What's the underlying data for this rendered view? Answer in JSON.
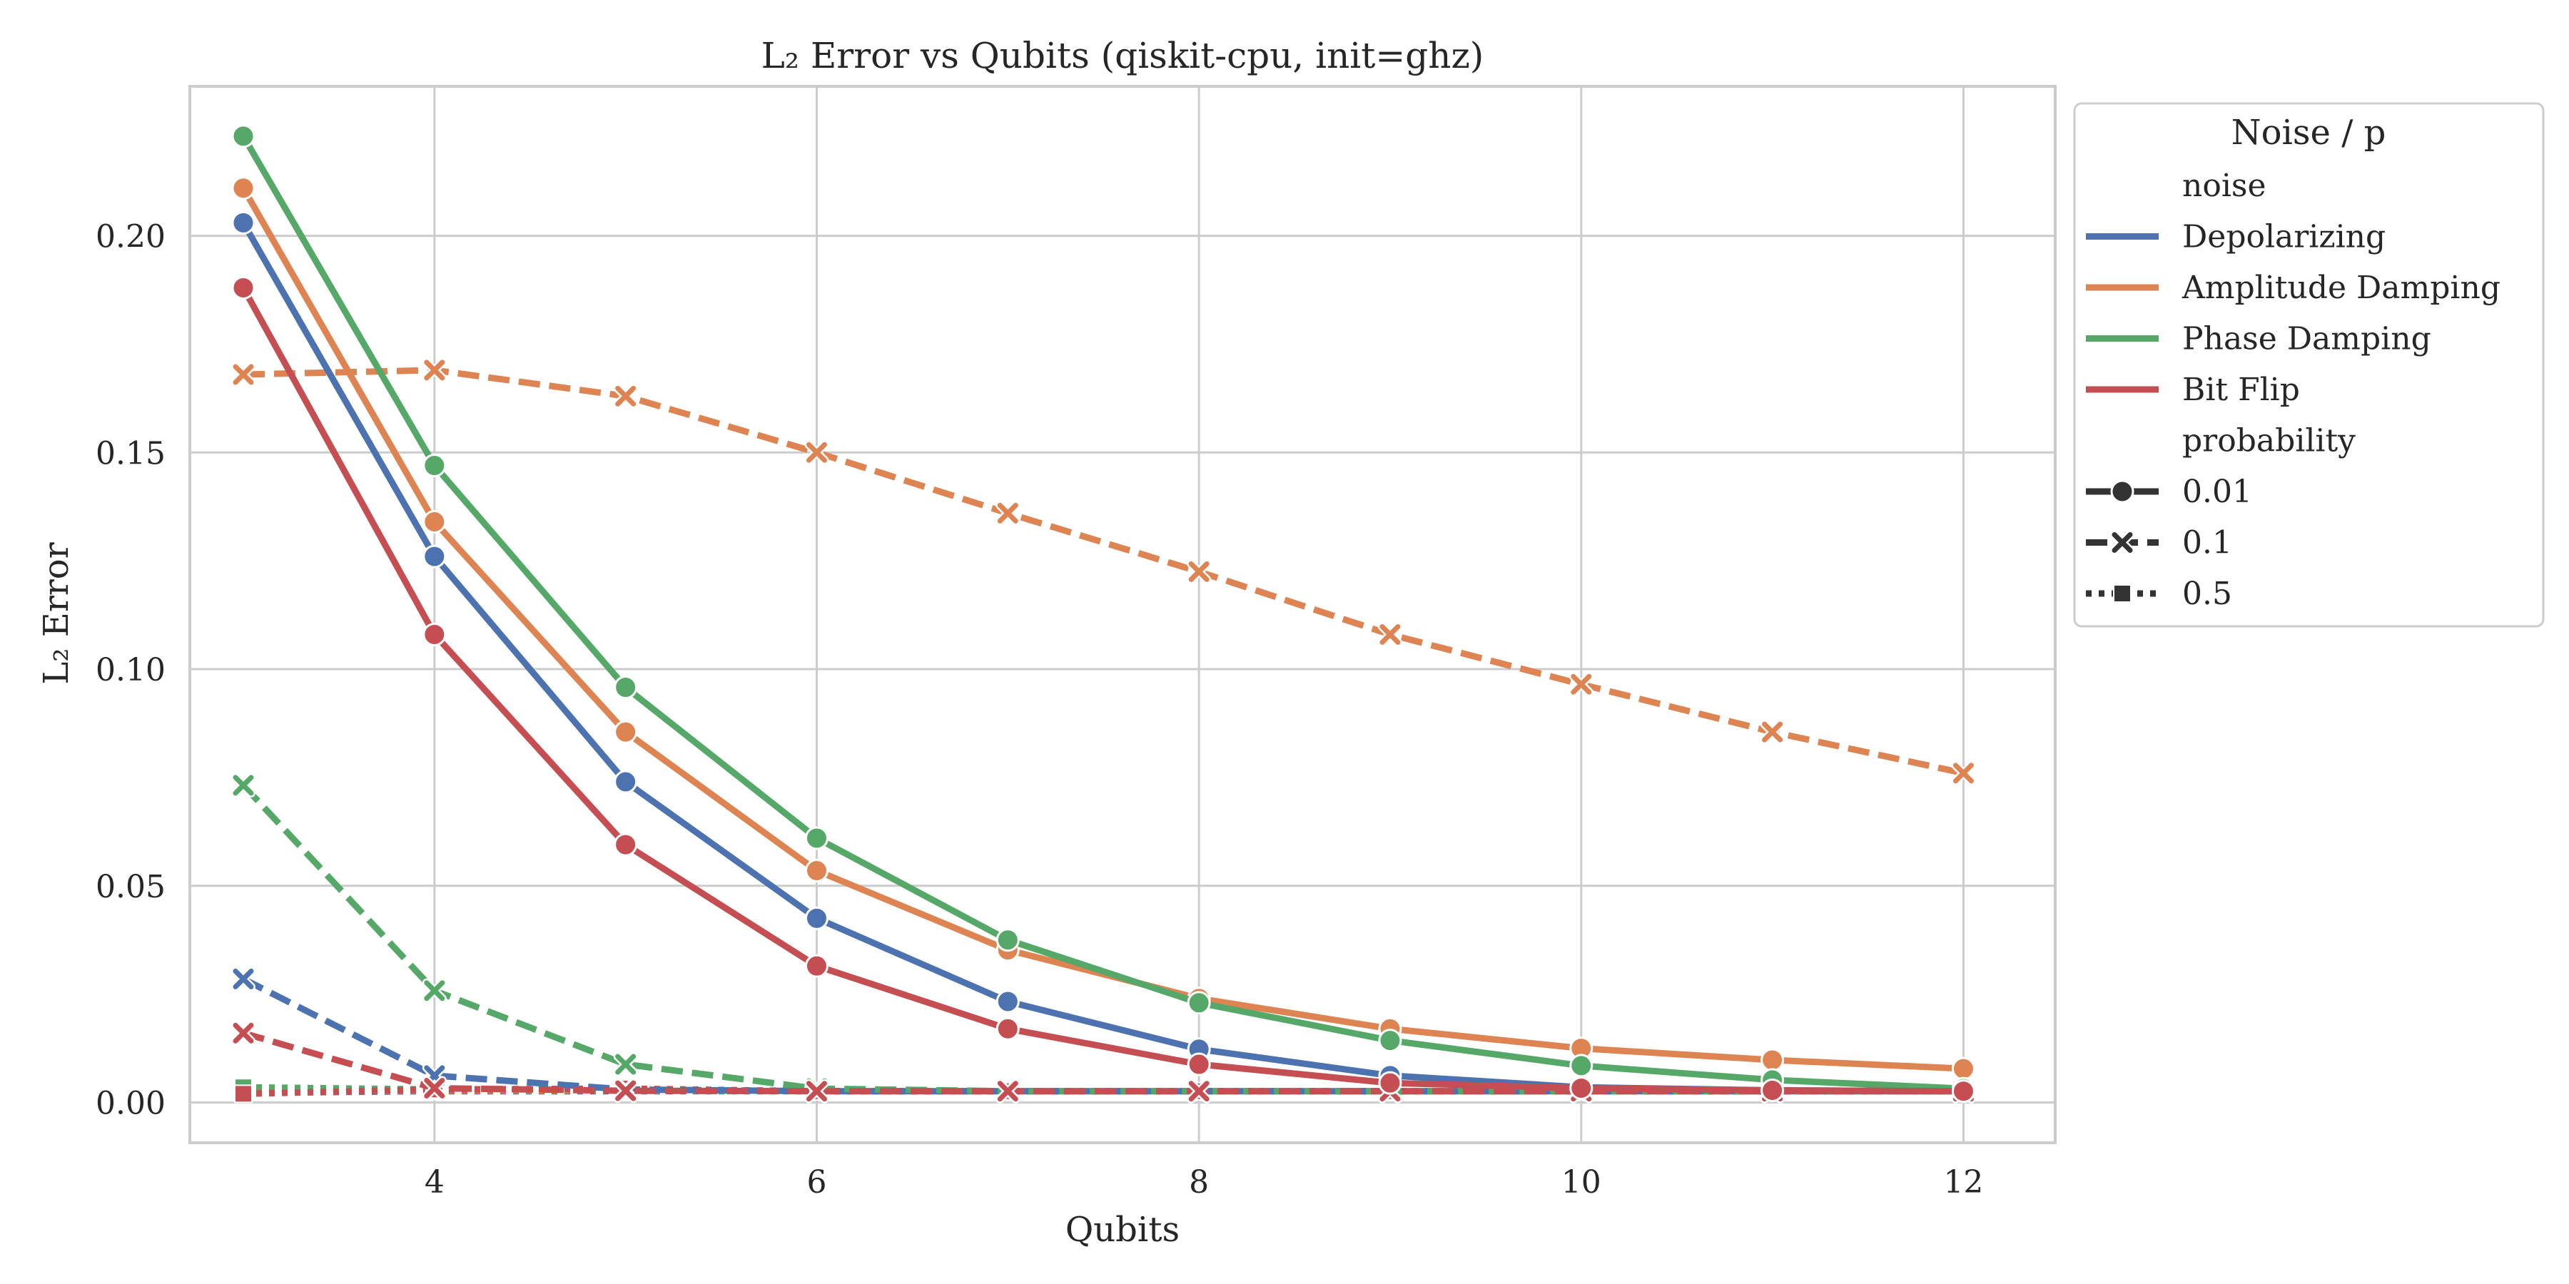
{
  "chart_data": {
    "type": "line",
    "title": "L₂ Error vs Qubits (qiskit-cpu, init=ghz)",
    "xlabel": "Qubits",
    "ylabel": "L₂ Error",
    "xlim": [
      2.72,
      12.48
    ],
    "ylim": [
      -0.0093,
      0.2345
    ],
    "x_ticks": [
      4,
      6,
      8,
      10,
      12
    ],
    "x_tick_labels": [
      "4",
      "6",
      "8",
      "10",
      "12"
    ],
    "y_ticks": [
      0.0,
      0.05,
      0.1,
      0.15,
      0.2
    ],
    "y_tick_labels": [
      "0.00",
      "0.05",
      "0.10",
      "0.15",
      "0.20"
    ],
    "grid": true,
    "legend": {
      "placement": "outside-right",
      "title": "Noise / p",
      "noise_heading": "noise",
      "probability_heading": "probability",
      "noise_entries": [
        {
          "label": "Depolarizing",
          "color": "#4c72b0"
        },
        {
          "label": "Amplitude Damping",
          "color": "#dd8452"
        },
        {
          "label": "Phase Damping",
          "color": "#55a868"
        },
        {
          "label": "Bit Flip",
          "color": "#c44e52"
        }
      ],
      "probability_entries": [
        {
          "label": "0.01",
          "marker": "circle",
          "dash": "solid"
        },
        {
          "label": "0.1",
          "marker": "x",
          "dash": "dashed"
        },
        {
          "label": "0.5",
          "marker": "square",
          "dash": "dotted"
        }
      ]
    },
    "x": [
      3,
      4,
      5,
      6,
      7,
      8,
      9,
      10,
      11,
      12
    ],
    "series": [
      {
        "noise": "Depolarizing",
        "probability": "0.01",
        "color": "#4c72b0",
        "marker": "circle",
        "dash": "solid",
        "values": [
          0.203,
          0.126,
          0.074,
          0.0425,
          0.0233,
          0.0123,
          0.0062,
          0.0035,
          0.0028,
          0.0026
        ]
      },
      {
        "noise": "Amplitude Damping",
        "probability": "0.01",
        "color": "#dd8452",
        "marker": "circle",
        "dash": "solid",
        "values": [
          0.211,
          0.134,
          0.0855,
          0.0535,
          0.0352,
          0.024,
          0.017,
          0.0125,
          0.0098,
          0.0078
        ]
      },
      {
        "noise": "Phase Damping",
        "probability": "0.01",
        "color": "#55a868",
        "marker": "circle",
        "dash": "solid",
        "values": [
          0.223,
          0.147,
          0.0958,
          0.061,
          0.0375,
          0.023,
          0.0143,
          0.0085,
          0.0052,
          0.0032
        ]
      },
      {
        "noise": "Bit Flip",
        "probability": "0.01",
        "color": "#c44e52",
        "marker": "circle",
        "dash": "solid",
        "values": [
          0.188,
          0.108,
          0.0595,
          0.0315,
          0.017,
          0.0088,
          0.0045,
          0.0033,
          0.0028,
          0.0026
        ]
      },
      {
        "noise": "Depolarizing",
        "probability": "0.1",
        "color": "#4c72b0",
        "marker": "x",
        "dash": "dashed",
        "values": [
          0.0285,
          0.0062,
          0.003,
          0.0026,
          0.0026,
          0.0026,
          0.0026,
          0.0026,
          0.0026,
          0.0026
        ]
      },
      {
        "noise": "Amplitude Damping",
        "probability": "0.1",
        "color": "#dd8452",
        "marker": "x",
        "dash": "dashed",
        "values": [
          0.168,
          0.169,
          0.163,
          0.15,
          0.136,
          0.1225,
          0.108,
          0.0965,
          0.0855,
          0.076
        ]
      },
      {
        "noise": "Phase Damping",
        "probability": "0.1",
        "color": "#55a868",
        "marker": "x",
        "dash": "dashed",
        "values": [
          0.0732,
          0.0258,
          0.0088,
          0.0032,
          0.0026,
          0.0026,
          0.0026,
          0.0026,
          0.0026,
          0.0026
        ]
      },
      {
        "noise": "Bit Flip",
        "probability": "0.1",
        "color": "#c44e52",
        "marker": "x",
        "dash": "dashed",
        "values": [
          0.016,
          0.0033,
          0.0027,
          0.0026,
          0.0026,
          0.0026,
          0.0026,
          0.0026,
          0.0026,
          0.0026
        ]
      },
      {
        "noise": "Depolarizing",
        "probability": "0.5",
        "color": "#4c72b0",
        "marker": "square",
        "dash": "dotted",
        "values": [
          0.0022,
          0.0026,
          0.0026,
          0.0026,
          0.0026,
          0.0026,
          0.0026,
          0.0026,
          0.0026,
          0.0026
        ]
      },
      {
        "noise": "Amplitude Damping",
        "probability": "0.5",
        "color": "#dd8452",
        "marker": "square",
        "dash": "dotted",
        "values": [
          0.0022,
          0.0028,
          0.0028,
          0.0026,
          0.0026,
          0.0026,
          0.0026,
          0.0026,
          0.0026,
          0.0026
        ]
      },
      {
        "noise": "Phase Damping",
        "probability": "0.5",
        "color": "#55a868",
        "marker": "square",
        "dash": "dotted",
        "values": [
          0.0035,
          0.003,
          0.003,
          0.0026,
          0.0026,
          0.0026,
          0.0026,
          0.0026,
          0.0026,
          0.0026
        ]
      },
      {
        "noise": "Bit Flip",
        "probability": "0.5",
        "color": "#c44e52",
        "marker": "square",
        "dash": "dotted",
        "values": [
          0.002,
          0.003,
          0.0032,
          0.0026,
          0.0026,
          0.0026,
          0.0026,
          0.0026,
          0.0026,
          0.0026
        ]
      }
    ]
  }
}
